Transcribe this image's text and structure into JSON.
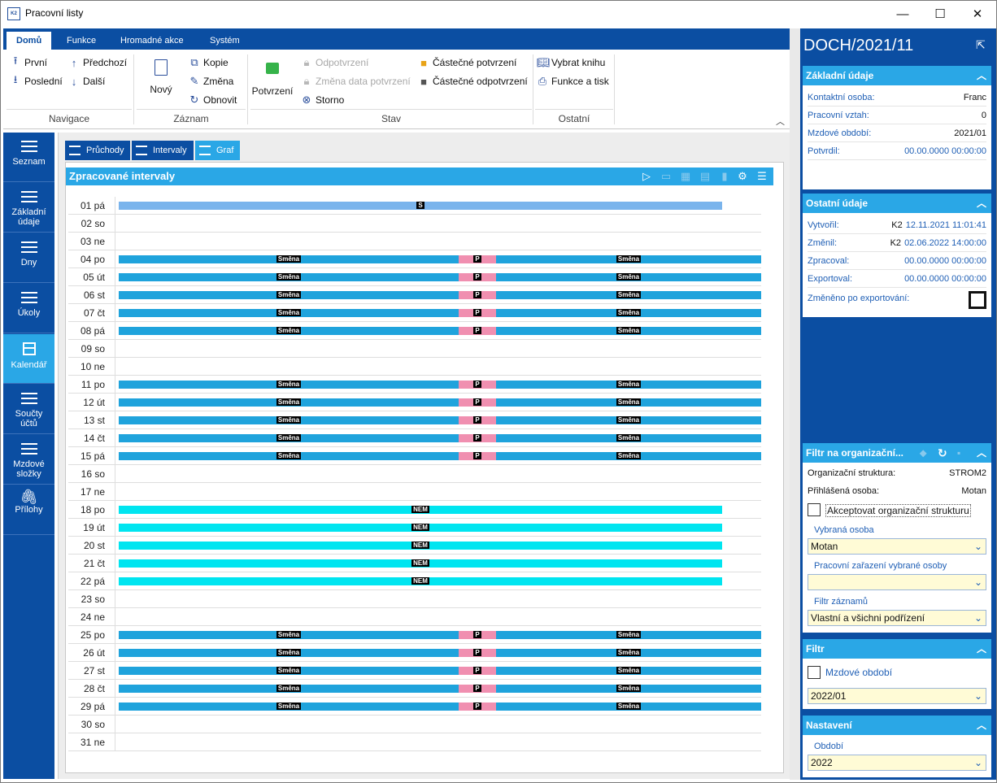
{
  "window": {
    "title": "Pracovní listy",
    "app_icon": "K2"
  },
  "ribbon": {
    "tabs": [
      "Domů",
      "Funkce",
      "Hromadné akce",
      "Systém"
    ],
    "navigace": {
      "label": "Navigace",
      "first": "První",
      "prev": "Předchozí",
      "last": "Poslední",
      "next": "Další"
    },
    "zaznam": {
      "label": "Záznam",
      "new": "Nový",
      "copy": "Kopie",
      "change": "Změna",
      "refresh": "Obnovit"
    },
    "stav": {
      "label": "Stav",
      "confirm": "Potvrzení",
      "unconfirm": "Odpotvrzení",
      "change_date": "Změna data potvrzení",
      "storno": "Storno",
      "partial_confirm": "Částečné potvrzení",
      "partial_unconfirm": "Částečné odpotvrzení"
    },
    "ostatni": {
      "label": "Ostatní",
      "select_book": "Vybrat knihu",
      "func_print": "Funkce a tisk"
    }
  },
  "leftnav": [
    {
      "label": "Seznam"
    },
    {
      "label": "Základní údaje"
    },
    {
      "label": "Dny"
    },
    {
      "label": "Úkoly"
    },
    {
      "label": "Kalendář"
    },
    {
      "label": "Součty účtů"
    },
    {
      "label": "Mzdové složky"
    },
    {
      "label": "Přílohy"
    }
  ],
  "content_tabs": [
    "Průchody",
    "Intervaly",
    "Graf"
  ],
  "panel": {
    "title": "Zpracované intervaly"
  },
  "chart_data": {
    "type": "gantt",
    "rows": [
      {
        "day": "01 pá",
        "bars": [
          {
            "kind": "S",
            "label": "S"
          }
        ]
      },
      {
        "day": "02 so",
        "bars": []
      },
      {
        "day": "03 ne",
        "bars": []
      },
      {
        "day": "04 po",
        "bars": [
          {
            "kind": "work",
            "label": "Směna"
          },
          {
            "kind": "break",
            "label": "P"
          },
          {
            "kind": "work",
            "label": "Směna"
          }
        ]
      },
      {
        "day": "05 út",
        "bars": [
          {
            "kind": "work",
            "label": "Směna"
          },
          {
            "kind": "break",
            "label": "P"
          },
          {
            "kind": "work",
            "label": "Směna"
          }
        ]
      },
      {
        "day": "06 st",
        "bars": [
          {
            "kind": "work",
            "label": "Směna"
          },
          {
            "kind": "break",
            "label": "P"
          },
          {
            "kind": "work",
            "label": "Směna"
          }
        ]
      },
      {
        "day": "07 čt",
        "bars": [
          {
            "kind": "work",
            "label": "Směna"
          },
          {
            "kind": "break",
            "label": "P"
          },
          {
            "kind": "work",
            "label": "Směna"
          }
        ]
      },
      {
        "day": "08 pá",
        "bars": [
          {
            "kind": "work",
            "label": "Směna"
          },
          {
            "kind": "break",
            "label": "P"
          },
          {
            "kind": "work",
            "label": "Směna"
          }
        ]
      },
      {
        "day": "09 so",
        "bars": []
      },
      {
        "day": "10 ne",
        "bars": []
      },
      {
        "day": "11 po",
        "bars": [
          {
            "kind": "work",
            "label": "Směna"
          },
          {
            "kind": "break",
            "label": "P"
          },
          {
            "kind": "work",
            "label": "Směna"
          }
        ]
      },
      {
        "day": "12 út",
        "bars": [
          {
            "kind": "work",
            "label": "Směna"
          },
          {
            "kind": "break",
            "label": "P"
          },
          {
            "kind": "work",
            "label": "Směna"
          }
        ]
      },
      {
        "day": "13 st",
        "bars": [
          {
            "kind": "work",
            "label": "Směna"
          },
          {
            "kind": "break",
            "label": "P"
          },
          {
            "kind": "work",
            "label": "Směna"
          }
        ]
      },
      {
        "day": "14 čt",
        "bars": [
          {
            "kind": "work",
            "label": "Směna"
          },
          {
            "kind": "break",
            "label": "P"
          },
          {
            "kind": "work",
            "label": "Směna"
          }
        ]
      },
      {
        "day": "15 pá",
        "bars": [
          {
            "kind": "work",
            "label": "Směna"
          },
          {
            "kind": "break",
            "label": "P"
          },
          {
            "kind": "work",
            "label": "Směna"
          }
        ]
      },
      {
        "day": "16 so",
        "bars": []
      },
      {
        "day": "17 ne",
        "bars": []
      },
      {
        "day": "18 po",
        "bars": [
          {
            "kind": "NEM",
            "label": "NEM"
          }
        ]
      },
      {
        "day": "19 út",
        "bars": [
          {
            "kind": "NEM",
            "label": "NEM"
          }
        ]
      },
      {
        "day": "20 st",
        "bars": [
          {
            "kind": "NEM",
            "label": "NEM"
          }
        ]
      },
      {
        "day": "21 čt",
        "bars": [
          {
            "kind": "NEM",
            "label": "NEM"
          }
        ]
      },
      {
        "day": "22 pá",
        "bars": [
          {
            "kind": "NEM",
            "label": "NEM"
          }
        ]
      },
      {
        "day": "23 so",
        "bars": []
      },
      {
        "day": "24 ne",
        "bars": []
      },
      {
        "day": "25 po",
        "bars": [
          {
            "kind": "work",
            "label": "Směna"
          },
          {
            "kind": "break",
            "label": "P"
          },
          {
            "kind": "work",
            "label": "Směna"
          }
        ]
      },
      {
        "day": "26 út",
        "bars": [
          {
            "kind": "work",
            "label": "Směna"
          },
          {
            "kind": "break",
            "label": "P"
          },
          {
            "kind": "work",
            "label": "Směna"
          }
        ]
      },
      {
        "day": "27 st",
        "bars": [
          {
            "kind": "work",
            "label": "Směna"
          },
          {
            "kind": "break",
            "label": "P"
          },
          {
            "kind": "work",
            "label": "Směna"
          }
        ]
      },
      {
        "day": "28 čt",
        "bars": [
          {
            "kind": "work",
            "label": "Směna"
          },
          {
            "kind": "break",
            "label": "P"
          },
          {
            "kind": "work",
            "label": "Směna"
          }
        ]
      },
      {
        "day": "29 pá",
        "bars": [
          {
            "kind": "work",
            "label": "Směna"
          },
          {
            "kind": "break",
            "label": "P"
          },
          {
            "kind": "work",
            "label": "Směna"
          }
        ]
      },
      {
        "day": "30 so",
        "bars": []
      },
      {
        "day": "31 ne",
        "bars": []
      }
    ],
    "colors": {
      "work": "#1fa3dc",
      "break": "#f08fb0",
      "NEM": "#00e5f0",
      "S": "#7ab4ec"
    }
  },
  "rightpane": {
    "doc_title": "DOCH/2021/11",
    "zakladni": {
      "title": "Základní údaje",
      "kontakt_label": "Kontaktní osoba:",
      "kontakt_val": "Franc",
      "pv_label": "Pracovní vztah:",
      "pv_val": "0",
      "mo_label": "Mzdové období:",
      "mo_val": "2021/01",
      "potvrdil_label": "Potvrdil:",
      "potvrdil_val": "00.00.0000 00:00:00"
    },
    "ostatni": {
      "title": "Ostatní údaje",
      "vytvoril_label": "Vytvořil:",
      "vytvoril_user": "K2",
      "vytvoril_val": "12.11.2021 11:01:41",
      "zmenil_label": "Změnil:",
      "zmenil_user": "K2",
      "zmenil_val": "02.06.2022 14:00:00",
      "zpracoval_label": "Zpracoval:",
      "zpracoval_val": "00.00.0000 00:00:00",
      "exportoval_label": "Exportoval:",
      "exportoval_val": "00.00.0000 00:00:00",
      "zmeneno_label": "Změněno po exportování:"
    },
    "filtr_org": {
      "title": "Filtr na organizační...",
      "org_label": "Organizační struktura:",
      "org_val": "STROM2",
      "prihl_label": "Přihlášená osoba:",
      "prihl_val": "Motan",
      "akcept_label": "Akceptovat organizační strukturu",
      "vybrana_label": "Vybraná osoba",
      "vybrana_val": "Motan",
      "zarazeni_label": "Pracovní zařazení vybrané osoby",
      "zarazeni_val": "",
      "filtr_label": "Filtr záznamů",
      "filtr_val": "Vlastní a všichni podřízení"
    },
    "filtr": {
      "title": "Filtr",
      "mo_label": "Mzdové období",
      "mo_val": "2022/01"
    },
    "nastaveni": {
      "title": "Nastavení",
      "obdobi_label": "Období",
      "obdobi_val": "2022"
    }
  }
}
